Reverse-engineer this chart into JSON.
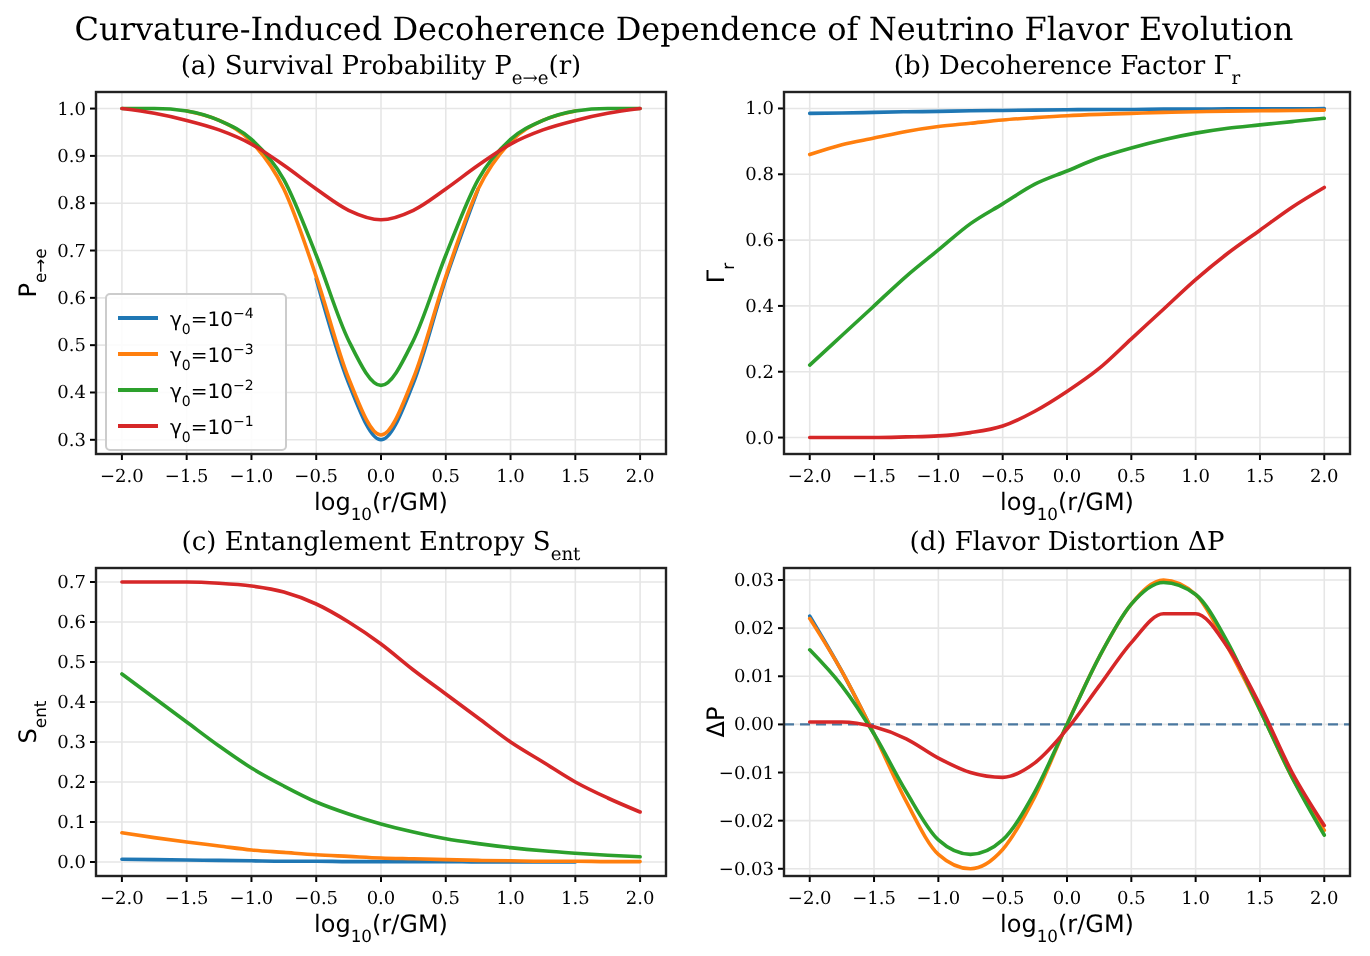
{
  "chart_data": [
    {
      "type": "line",
      "title": "(a) Survival Probability P$_{e→e}$(r)",
      "annotations": [
        "Curvature-Induced Decoherence Dependence of Neutrino Flavor Evolution"
      ],
      "xlabel": "log$_{10}$(r/GM)",
      "ylabel": "P$_{e→e}$",
      "x": [
        -2,
        -1.75,
        -1.5,
        -1.25,
        -1,
        -0.75,
        -0.5,
        -0.25,
        0,
        0.25,
        0.5,
        0.75,
        1,
        1.25,
        1.5,
        1.75,
        2
      ],
      "series": [
        {
          "name": "γ$_{0}$=10$^{−4}$",
          "color": "#1f77b4",
          "values": [
            null,
            null,
            null,
            null,
            null,
            null,
            0.64,
            0.42,
            0.3,
            0.42,
            0.64,
            0.83,
            null,
            null,
            null,
            null,
            null
          ]
        },
        {
          "name": "γ$_{0}$=10$^{−3}$",
          "color": "#ff7f0e",
          "values": [
            null,
            null,
            0.995,
            0.975,
            0.93,
            0.83,
            0.645,
            0.43,
            0.31,
            0.43,
            0.645,
            0.83,
            0.93,
            0.975,
            0.995,
            null,
            null
          ]
        },
        {
          "name": "γ$_{0}$=10$^{−2}$",
          "color": "#2ca02c",
          "values": [
            1.0,
            1.0,
            0.995,
            0.975,
            0.935,
            0.85,
            0.69,
            0.51,
            0.415,
            0.51,
            0.69,
            0.85,
            0.935,
            0.975,
            0.995,
            1.0,
            1.0
          ]
        },
        {
          "name": "γ$_{0}$=10$^{−1}$",
          "color": "#d62728",
          "values": [
            1.0,
            0.99,
            0.975,
            0.955,
            0.925,
            0.88,
            0.83,
            0.785,
            0.765,
            0.785,
            0.83,
            0.88,
            0.925,
            0.955,
            0.975,
            0.99,
            1.0
          ]
        }
      ],
      "xlim": [
        -2.2,
        2.2
      ],
      "xticks": [
        {
          "value": -2,
          "label": "−2.0"
        },
        {
          "value": -1.5,
          "label": "−1.5"
        },
        {
          "value": -1,
          "label": "−1.0"
        },
        {
          "value": -0.5,
          "label": "−0.5"
        },
        {
          "value": 0,
          "label": "0.0"
        },
        {
          "value": 0.5,
          "label": "0.5"
        },
        {
          "value": 1,
          "label": "1.0"
        },
        {
          "value": 1.5,
          "label": "1.5"
        },
        {
          "value": 2,
          "label": "2.0"
        }
      ],
      "ylim": [
        0.27,
        1.035
      ],
      "yticks": [
        0.3,
        0.4,
        0.5,
        0.6,
        0.7,
        0.8,
        0.9,
        {
          "value": 1,
          "label": "1.0"
        }
      ],
      "grid": true,
      "legend": "bottom left"
    },
    {
      "type": "line",
      "title": "(b) Decoherence Factor Γ$_{r}$",
      "xlabel": "log$_{10}$(r/GM)",
      "ylabel": "Γ$_{r}$",
      "x": [
        -2,
        -1.75,
        -1.5,
        -1.25,
        -1,
        -0.75,
        -0.5,
        -0.25,
        0,
        0.25,
        0.5,
        0.75,
        1,
        1.25,
        1.5,
        1.75,
        2
      ],
      "series": [
        {
          "color": "#1f77b4",
          "values": [
            0.985,
            0.986,
            0.988,
            0.99,
            0.991,
            0.993,
            0.994,
            0.995,
            0.996,
            0.997,
            0.997,
            0.998,
            0.998,
            0.999,
            0.999,
            0.999,
            1.0
          ]
        },
        {
          "color": "#ff7f0e",
          "values": [
            0.86,
            0.89,
            0.91,
            0.93,
            0.945,
            0.955,
            0.965,
            0.972,
            0.978,
            0.982,
            0.985,
            0.988,
            0.99,
            0.992,
            0.993,
            0.994,
            0.995
          ]
        },
        {
          "color": "#2ca02c",
          "values": [
            0.22,
            0.31,
            0.4,
            0.49,
            0.57,
            0.65,
            0.71,
            0.77,
            0.81,
            0.85,
            0.88,
            0.905,
            0.925,
            0.94,
            0.95,
            0.96,
            0.97
          ]
        },
        {
          "color": "#d62728",
          "values": [
            0,
            0,
            0,
            0.002,
            0.005,
            0.015,
            0.035,
            0.08,
            0.14,
            0.21,
            0.3,
            0.39,
            0.48,
            0.56,
            0.63,
            0.7,
            0.76
          ]
        }
      ],
      "xlim": [
        -2.2,
        2.2
      ],
      "xticks": [
        {
          "value": -2,
          "label": "−2.0"
        },
        {
          "value": -1.5,
          "label": "−1.5"
        },
        {
          "value": -1,
          "label": "−1.0"
        },
        {
          "value": -0.5,
          "label": "−0.5"
        },
        {
          "value": 0,
          "label": "0.0"
        },
        {
          "value": 0.5,
          "label": "0.5"
        },
        {
          "value": 1,
          "label": "1.0"
        },
        {
          "value": 1.5,
          "label": "1.5"
        },
        {
          "value": 2,
          "label": "2.0"
        }
      ],
      "ylim": [
        -0.05,
        1.05
      ],
      "yticks": [
        {
          "value": 0,
          "label": "0.0"
        },
        0.2,
        0.4,
        0.6,
        0.8,
        {
          "value": 1,
          "label": "1.0"
        }
      ],
      "grid": true
    },
    {
      "type": "line",
      "title": "(c) Entanglement Entropy S$_{ent}$",
      "xlabel": "log$_{10}$(r/GM)",
      "ylabel": "S$_{ent}$",
      "x": [
        -2,
        -1.75,
        -1.5,
        -1.25,
        -1,
        -0.75,
        -0.5,
        -0.25,
        0,
        0.25,
        0.5,
        0.75,
        1,
        1.25,
        1.5,
        1.75,
        2
      ],
      "series": [
        {
          "color": "#1f77b4",
          "values": [
            0.007,
            0.006,
            0.005,
            0.004,
            0.003,
            0.002,
            0.002,
            0.001,
            0.001,
            0.001,
            0.001,
            0,
            0,
            0,
            0,
            null,
            null
          ]
        },
        {
          "color": "#ff7f0e",
          "values": [
            0.073,
            0.061,
            0.05,
            0.04,
            0.03,
            0.024,
            0.018,
            0.014,
            0.01,
            0.008,
            0.006,
            0.004,
            0.003,
            0.002,
            0.002,
            0.001,
            0.001
          ]
        },
        {
          "color": "#2ca02c",
          "values": [
            0.47,
            0.41,
            0.35,
            0.29,
            0.235,
            0.19,
            0.15,
            0.12,
            0.095,
            0.075,
            0.058,
            0.046,
            0.036,
            0.028,
            0.022,
            0.017,
            0.013
          ]
        },
        {
          "color": "#d62728",
          "values": [
            0.7,
            0.7,
            0.7,
            0.697,
            0.69,
            0.675,
            0.645,
            0.6,
            0.545,
            0.48,
            0.42,
            0.36,
            0.3,
            0.25,
            0.2,
            0.16,
            0.125
          ]
        }
      ],
      "xlim": [
        -2.2,
        2.2
      ],
      "xticks": [
        {
          "value": -2,
          "label": "−2.0"
        },
        {
          "value": -1.5,
          "label": "−1.5"
        },
        {
          "value": -1,
          "label": "−1.0"
        },
        {
          "value": -0.5,
          "label": "−0.5"
        },
        {
          "value": 0,
          "label": "0.0"
        },
        {
          "value": 0.5,
          "label": "0.5"
        },
        {
          "value": 1,
          "label": "1.0"
        },
        {
          "value": 1.5,
          "label": "1.5"
        },
        {
          "value": 2,
          "label": "2.0"
        }
      ],
      "ylim": [
        -0.035,
        0.735
      ],
      "yticks": [
        {
          "value": 0,
          "label": "0.0"
        },
        0.1,
        0.2,
        0.3,
        0.4,
        0.5,
        0.6,
        0.7
      ],
      "grid": true
    },
    {
      "type": "line",
      "title": "(d) Flavor Distortion ΔP",
      "xlabel": "log$_{10}$(r/GM)",
      "ylabel": "ΔP",
      "x": [
        -2,
        -1.75,
        -1.5,
        -1.25,
        -1,
        -0.75,
        -0.5,
        -0.25,
        0,
        0.25,
        0.5,
        0.75,
        1,
        1.25,
        1.5,
        1.75,
        2
      ],
      "series": [
        {
          "color": "#1f77b4",
          "values": [
            0.0225,
            0.011,
            -0.002,
            null,
            null,
            null,
            null,
            null,
            null,
            null,
            null,
            null,
            null,
            null,
            null,
            null,
            null
          ]
        },
        {
          "color": "#ff7f0e",
          "values": [
            0.022,
            0.011,
            -0.002,
            -0.016,
            -0.027,
            -0.03,
            -0.026,
            -0.015,
            0,
            0.014,
            0.025,
            0.03,
            0.027,
            0.016,
            0.003,
            -0.011,
            -0.022
          ]
        },
        {
          "color": "#2ca02c",
          "values": [
            0.0155,
            0.008,
            -0.002,
            -0.014,
            -0.024,
            -0.027,
            -0.024,
            -0.014,
            0,
            0.014,
            0.025,
            0.0295,
            0.027,
            0.017,
            0.003,
            -0.011,
            -0.023
          ]
        },
        {
          "color": "#d62728",
          "values": [
            0.0005,
            0.0005,
            -0.0005,
            -0.003,
            -0.007,
            -0.01,
            -0.011,
            -0.008,
            -0.001,
            0.008,
            0.017,
            0.023,
            0.023,
            0.016,
            0.004,
            -0.01,
            -0.021
          ]
        }
      ],
      "xlim": [
        -2.2,
        2.2
      ],
      "xticks": [
        {
          "value": -2,
          "label": "−2.0"
        },
        {
          "value": -1.5,
          "label": "−1.5"
        },
        {
          "value": -1,
          "label": "−1.0"
        },
        {
          "value": -0.5,
          "label": "−0.5"
        },
        {
          "value": 0,
          "label": "0.0"
        },
        {
          "value": 0.5,
          "label": "0.5"
        },
        {
          "value": 1,
          "label": "1.0"
        },
        {
          "value": 1.5,
          "label": "1.5"
        },
        {
          "value": 2,
          "label": "2.0"
        }
      ],
      "ylim": [
        -0.0315,
        0.0325
      ],
      "yticks": [
        {
          "value": -0.03,
          "label": "−0.03"
        },
        {
          "value": -0.02,
          "label": "−0.02"
        },
        {
          "value": -0.01,
          "label": "−0.01"
        },
        {
          "value": 0,
          "label": "0.00"
        },
        {
          "value": 0.01,
          "label": "0.01"
        },
        {
          "value": 0.02,
          "label": "0.02"
        },
        {
          "value": 0.03,
          "label": "0.03"
        }
      ],
      "grid": true,
      "ref_lines": [
        {
          "axis": "y",
          "value": 0,
          "color": "#4a78a0",
          "line_style": "dashed"
        }
      ]
    }
  ]
}
